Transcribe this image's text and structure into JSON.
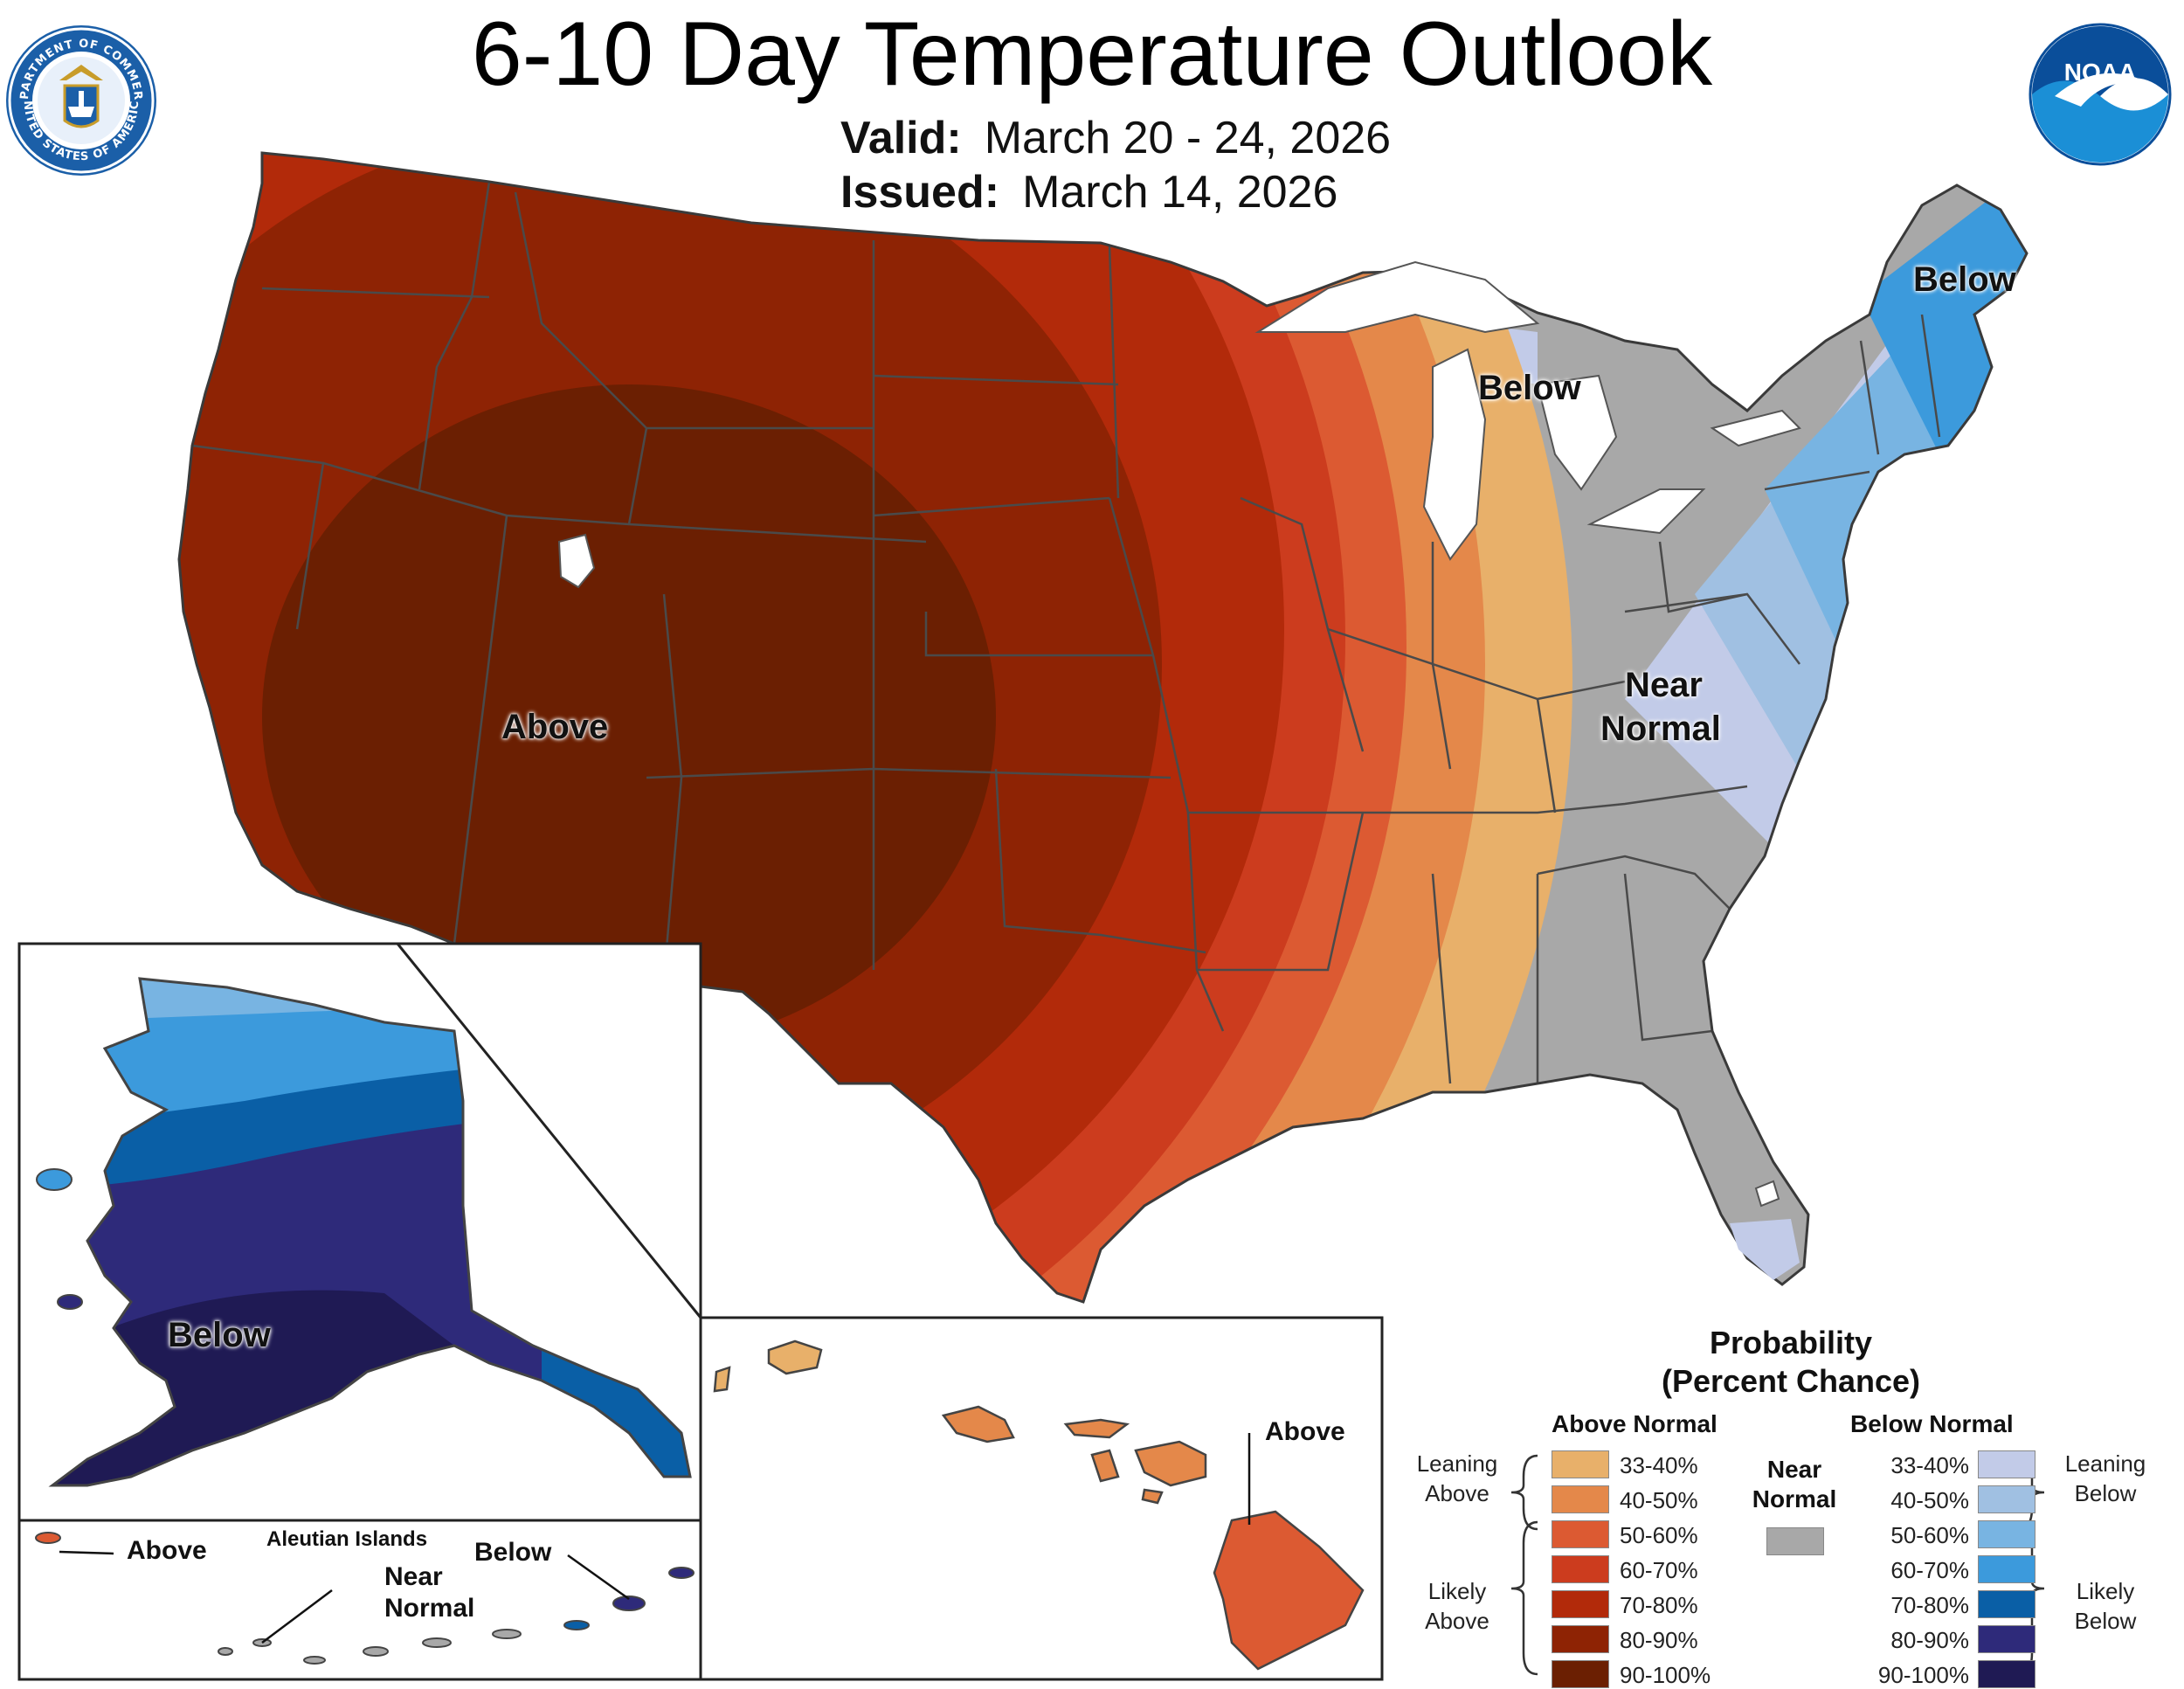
{
  "header": {
    "title": "6-10 Day Temperature Outlook",
    "valid_label": "Valid:",
    "valid_dates": "March 20 - 24, 2026",
    "issued_label": "Issued:",
    "issued_date": "March 14, 2026"
  },
  "logos": {
    "left_seal_text_top": "DEPARTMENT OF COMMERCE",
    "left_seal_text_bottom": "UNITED STATES OF AMERICA",
    "right_logo_text": "NOAA"
  },
  "map_labels": {
    "west": "Above",
    "great_lakes": "Below",
    "northeast": "Below",
    "southeast_line1": "Near",
    "southeast_line2": "Normal"
  },
  "alaska": {
    "label": "Below"
  },
  "aleutians": {
    "title": "Aleutian Islands",
    "above": "Above",
    "below": "Below",
    "near_line1": "Near",
    "near_line2": "Normal"
  },
  "hawaii": {
    "label": "Above"
  },
  "legend": {
    "title_line1": "Probability",
    "title_line2": "(Percent Chance)",
    "above_header": "Above Normal",
    "below_header": "Below Normal",
    "near_line1": "Near",
    "near_line2": "Normal",
    "leaning_above_1": "Leaning",
    "leaning_above_2": "Above",
    "likely_above_1": "Likely",
    "likely_above_2": "Above",
    "leaning_below_1": "Leaning",
    "leaning_below_2": "Below",
    "likely_below_1": "Likely",
    "likely_below_2": "Below",
    "above_bins": [
      {
        "label": "33-40%",
        "color": "#e8b06a"
      },
      {
        "label": "40-50%",
        "color": "#e4884a"
      },
      {
        "label": "50-60%",
        "color": "#dc5a32"
      },
      {
        "label": "60-70%",
        "color": "#cc3c1e"
      },
      {
        "label": "70-80%",
        "color": "#b22a0a"
      },
      {
        "label": "80-90%",
        "color": "#8e2304"
      },
      {
        "label": "90-100%",
        "color": "#6b1f02"
      }
    ],
    "near_color": "#a8a8a8",
    "below_bins": [
      {
        "label": "33-40%",
        "color": "#c2cbe8"
      },
      {
        "label": "40-50%",
        "color": "#a0c0e2"
      },
      {
        "label": "50-60%",
        "color": "#78b4e2"
      },
      {
        "label": "60-70%",
        "color": "#3c9adc"
      },
      {
        "label": "70-80%",
        "color": "#0a5fa6"
      },
      {
        "label": "80-90%",
        "color": "#2e2a7a"
      },
      {
        "label": "90-100%",
        "color": "#1f1a54"
      }
    ]
  }
}
